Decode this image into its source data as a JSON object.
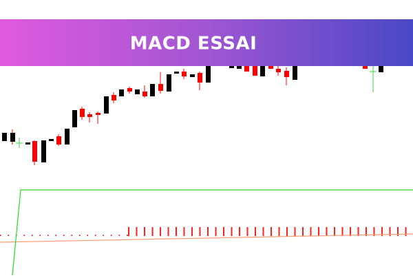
{
  "banner": {
    "title": "MACD ESSAI"
  }
}
